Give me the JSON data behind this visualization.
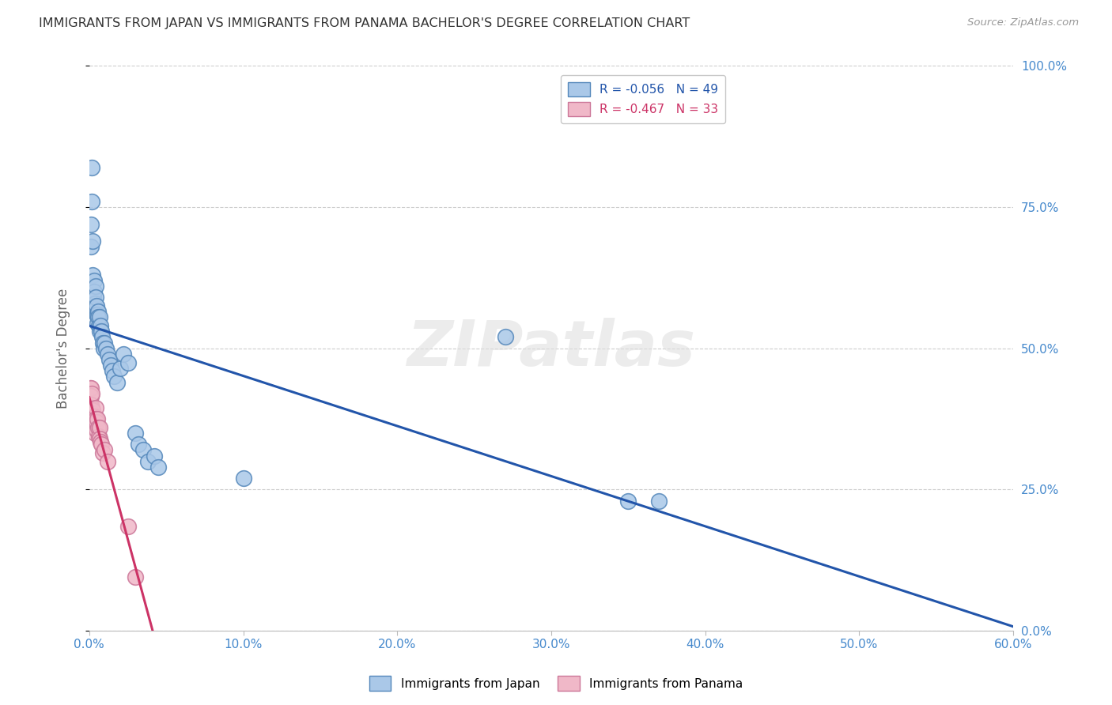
{
  "title": "IMMIGRANTS FROM JAPAN VS IMMIGRANTS FROM PANAMA BACHELOR'S DEGREE CORRELATION CHART",
  "source": "Source: ZipAtlas.com",
  "ylabel": "Bachelor's Degree",
  "ylabel_right_ticks": [
    "0.0%",
    "25.0%",
    "50.0%",
    "75.0%",
    "100.0%"
  ],
  "watermark": "ZIPatlas",
  "japan_x": [
    0.001,
    0.0012,
    0.0015,
    0.0018,
    0.002,
    0.0022,
    0.0025,
    0.0028,
    0.003,
    0.0032,
    0.0035,
    0.0038,
    0.004,
    0.0042,
    0.0045,
    0.0048,
    0.005,
    0.0052,
    0.0055,
    0.0058,
    0.006,
    0.0065,
    0.007,
    0.0075,
    0.008,
    0.0085,
    0.009,
    0.0095,
    0.01,
    0.011,
    0.012,
    0.013,
    0.014,
    0.015,
    0.016,
    0.018,
    0.02,
    0.022,
    0.025,
    0.03,
    0.032,
    0.035,
    0.038,
    0.042,
    0.045,
    0.1,
    0.27,
    0.35,
    0.37
  ],
  "japan_y": [
    0.68,
    0.72,
    0.82,
    0.76,
    0.69,
    0.63,
    0.6,
    0.59,
    0.62,
    0.6,
    0.58,
    0.57,
    0.61,
    0.59,
    0.575,
    0.56,
    0.56,
    0.545,
    0.565,
    0.555,
    0.54,
    0.53,
    0.555,
    0.54,
    0.53,
    0.52,
    0.51,
    0.5,
    0.51,
    0.5,
    0.49,
    0.48,
    0.47,
    0.46,
    0.45,
    0.44,
    0.465,
    0.49,
    0.475,
    0.35,
    0.33,
    0.32,
    0.3,
    0.31,
    0.29,
    0.27,
    0.52,
    0.23,
    0.23
  ],
  "panama_x": [
    0.0008,
    0.001,
    0.001,
    0.0012,
    0.0012,
    0.0014,
    0.0015,
    0.0016,
    0.0018,
    0.002,
    0.0022,
    0.0025,
    0.0028,
    0.003,
    0.0032,
    0.0035,
    0.0038,
    0.004,
    0.0042,
    0.0045,
    0.0048,
    0.005,
    0.0055,
    0.006,
    0.0065,
    0.007,
    0.0075,
    0.008,
    0.009,
    0.01,
    0.012,
    0.025,
    0.03
  ],
  "panama_y": [
    0.43,
    0.415,
    0.43,
    0.415,
    0.4,
    0.395,
    0.42,
    0.38,
    0.37,
    0.385,
    0.39,
    0.375,
    0.36,
    0.38,
    0.365,
    0.38,
    0.35,
    0.395,
    0.375,
    0.355,
    0.37,
    0.375,
    0.36,
    0.345,
    0.36,
    0.34,
    0.335,
    0.33,
    0.315,
    0.32,
    0.3,
    0.185,
    0.095
  ],
  "japan_color": "#aac8e8",
  "japan_edge": "#5588bb",
  "panama_color": "#f0b8c8",
  "panama_edge": "#cc7799",
  "japan_line_color": "#2255aa",
  "panama_line_color": "#cc3366",
  "background": "#ffffff",
  "grid_color": "#cccccc",
  "axis_label_color": "#4488cc",
  "title_color": "#333333",
  "xlim": [
    0.0,
    0.6
  ],
  "ylim": [
    0.0,
    1.0
  ],
  "xticks": [
    0.0,
    0.1,
    0.2,
    0.3,
    0.4,
    0.5,
    0.6
  ],
  "xtick_labels": [
    "0.0%",
    "10.0%",
    "20.0%",
    "30.0%",
    "40.0%",
    "50.0%",
    "60.0%"
  ],
  "yticks": [
    0.0,
    0.25,
    0.5,
    0.75,
    1.0
  ],
  "figsize": [
    14.06,
    8.92
  ],
  "dpi": 100
}
